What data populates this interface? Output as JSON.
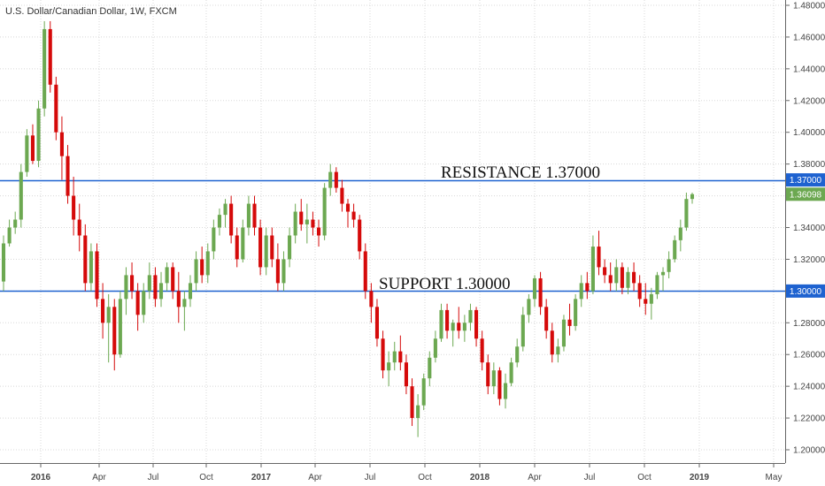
{
  "chart_data": {
    "type": "candlestick",
    "title": "U.S. Dollar/Canadian Dollar, 1W, FXCM",
    "ylim": [
      1.19,
      1.49
    ],
    "y_ticks": [
      "1.20000",
      "1.22000",
      "1.24000",
      "1.26000",
      "1.28000",
      "1.30000",
      "1.32000",
      "1.34000",
      "1.36000",
      "1.38000",
      "1.40000",
      "1.42000",
      "1.44000",
      "1.46000",
      "1.48000"
    ],
    "x_ticks": [
      {
        "label": "2016",
        "bold": true
      },
      {
        "label": "Apr",
        "bold": false
      },
      {
        "label": "Jul",
        "bold": false
      },
      {
        "label": "Oct",
        "bold": false
      },
      {
        "label": "2017",
        "bold": true
      },
      {
        "label": "Apr",
        "bold": false
      },
      {
        "label": "Jul",
        "bold": false
      },
      {
        "label": "Oct",
        "bold": false
      },
      {
        "label": "2018",
        "bold": true
      },
      {
        "label": "Apr",
        "bold": false
      },
      {
        "label": "Jul",
        "bold": false
      },
      {
        "label": "Oct",
        "bold": false
      },
      {
        "label": "2019",
        "bold": true
      },
      {
        "label": "May",
        "bold": false
      }
    ],
    "levels": [
      {
        "label": "RESISTANCE 1.37000",
        "value": 1.37,
        "badge": "1.37000"
      },
      {
        "label": "SUPPORT 1.30000",
        "value": 1.3,
        "badge": "1.30000"
      }
    ],
    "last_price": {
      "value": 1.36098,
      "badge": "1.36098"
    },
    "colors": {
      "up": "#6ca851",
      "down": "#d50a0a",
      "level": "#1e62d0",
      "last": "#6ca851",
      "grid": "#d8d8d8"
    },
    "candles": [
      [
        1.306,
        1.335,
        1.3,
        1.33
      ],
      [
        1.33,
        1.345,
        1.328,
        1.34
      ],
      [
        1.34,
        1.35,
        1.336,
        1.345
      ],
      [
        1.345,
        1.38,
        1.34,
        1.375
      ],
      [
        1.375,
        1.402,
        1.372,
        1.398
      ],
      [
        1.398,
        1.405,
        1.38,
        1.382
      ],
      [
        1.382,
        1.42,
        1.378,
        1.415
      ],
      [
        1.415,
        1.47,
        1.41,
        1.465
      ],
      [
        1.465,
        1.47,
        1.425,
        1.43
      ],
      [
        1.43,
        1.435,
        1.395,
        1.4
      ],
      [
        1.4,
        1.41,
        1.37,
        1.385
      ],
      [
        1.385,
        1.392,
        1.355,
        1.36
      ],
      [
        1.36,
        1.372,
        1.335,
        1.345
      ],
      [
        1.345,
        1.355,
        1.325,
        1.335
      ],
      [
        1.335,
        1.342,
        1.3,
        1.305
      ],
      [
        1.305,
        1.33,
        1.3,
        1.325
      ],
      [
        1.325,
        1.33,
        1.29,
        1.295
      ],
      [
        1.295,
        1.305,
        1.27,
        1.28
      ],
      [
        1.28,
        1.298,
        1.255,
        1.29
      ],
      [
        1.29,
        1.295,
        1.25,
        1.26
      ],
      [
        1.26,
        1.3,
        1.258,
        1.295
      ],
      [
        1.295,
        1.315,
        1.285,
        1.31
      ],
      [
        1.31,
        1.318,
        1.295,
        1.3
      ],
      [
        1.3,
        1.305,
        1.275,
        1.285
      ],
      [
        1.285,
        1.305,
        1.28,
        1.3
      ],
      [
        1.3,
        1.318,
        1.295,
        1.31
      ],
      [
        1.31,
        1.315,
        1.29,
        1.295
      ],
      [
        1.295,
        1.312,
        1.29,
        1.305
      ],
      [
        1.305,
        1.318,
        1.3,
        1.315
      ],
      [
        1.315,
        1.318,
        1.295,
        1.3
      ],
      [
        1.3,
        1.312,
        1.28,
        1.29
      ],
      [
        1.29,
        1.3,
        1.275,
        1.295
      ],
      [
        1.295,
        1.31,
        1.29,
        1.305
      ],
      [
        1.305,
        1.325,
        1.3,
        1.32
      ],
      [
        1.32,
        1.328,
        1.305,
        1.31
      ],
      [
        1.31,
        1.33,
        1.305,
        1.325
      ],
      [
        1.325,
        1.345,
        1.32,
        1.34
      ],
      [
        1.34,
        1.352,
        1.335,
        1.348
      ],
      [
        1.348,
        1.358,
        1.34,
        1.355
      ],
      [
        1.355,
        1.36,
        1.33,
        1.335
      ],
      [
        1.335,
        1.34,
        1.315,
        1.32
      ],
      [
        1.32,
        1.345,
        1.318,
        1.34
      ],
      [
        1.34,
        1.36,
        1.335,
        1.355
      ],
      [
        1.355,
        1.36,
        1.335,
        1.34
      ],
      [
        1.34,
        1.345,
        1.31,
        1.315
      ],
      [
        1.315,
        1.34,
        1.31,
        1.335
      ],
      [
        1.335,
        1.34,
        1.315,
        1.32
      ],
      [
        1.32,
        1.33,
        1.3,
        1.305
      ],
      [
        1.305,
        1.325,
        1.3,
        1.32
      ],
      [
        1.32,
        1.34,
        1.315,
        1.335
      ],
      [
        1.335,
        1.355,
        1.33,
        1.35
      ],
      [
        1.35,
        1.358,
        1.338,
        1.342
      ],
      [
        1.342,
        1.355,
        1.33,
        1.345
      ],
      [
        1.345,
        1.35,
        1.335,
        1.34
      ],
      [
        1.34,
        1.345,
        1.328,
        1.335
      ],
      [
        1.335,
        1.368,
        1.332,
        1.365
      ],
      [
        1.365,
        1.38,
        1.36,
        1.375
      ],
      [
        1.375,
        1.378,
        1.362,
        1.365
      ],
      [
        1.365,
        1.37,
        1.35,
        1.355
      ],
      [
        1.355,
        1.358,
        1.34,
        1.35
      ],
      [
        1.35,
        1.355,
        1.34,
        1.345
      ],
      [
        1.345,
        1.348,
        1.32,
        1.325
      ],
      [
        1.325,
        1.33,
        1.295,
        1.3
      ],
      [
        1.3,
        1.305,
        1.28,
        1.29
      ],
      [
        1.29,
        1.295,
        1.265,
        1.27
      ],
      [
        1.27,
        1.275,
        1.245,
        1.25
      ],
      [
        1.25,
        1.262,
        1.24,
        1.255
      ],
      [
        1.255,
        1.268,
        1.25,
        1.262
      ],
      [
        1.262,
        1.272,
        1.25,
        1.255
      ],
      [
        1.255,
        1.26,
        1.235,
        1.24
      ],
      [
        1.24,
        1.245,
        1.215,
        1.22
      ],
      [
        1.22,
        1.235,
        1.208,
        1.228
      ],
      [
        1.228,
        1.248,
        1.225,
        1.245
      ],
      [
        1.245,
        1.262,
        1.24,
        1.258
      ],
      [
        1.258,
        1.275,
        1.255,
        1.27
      ],
      [
        1.27,
        1.292,
        1.268,
        1.288
      ],
      [
        1.288,
        1.292,
        1.27,
        1.275
      ],
      [
        1.275,
        1.282,
        1.265,
        1.28
      ],
      [
        1.28,
        1.29,
        1.27,
        1.275
      ],
      [
        1.275,
        1.285,
        1.268,
        1.28
      ],
      [
        1.28,
        1.292,
        1.275,
        1.288
      ],
      [
        1.288,
        1.29,
        1.265,
        1.27
      ],
      [
        1.27,
        1.275,
        1.25,
        1.255
      ],
      [
        1.255,
        1.26,
        1.235,
        1.24
      ],
      [
        1.24,
        1.255,
        1.235,
        1.25
      ],
      [
        1.25,
        1.252,
        1.228,
        1.232
      ],
      [
        1.232,
        1.248,
        1.226,
        1.242
      ],
      [
        1.242,
        1.258,
        1.24,
        1.255
      ],
      [
        1.255,
        1.27,
        1.252,
        1.265
      ],
      [
        1.265,
        1.29,
        1.262,
        1.285
      ],
      [
        1.285,
        1.298,
        1.28,
        1.295
      ],
      [
        1.295,
        1.31,
        1.29,
        1.308
      ],
      [
        1.308,
        1.312,
        1.285,
        1.29
      ],
      [
        1.29,
        1.295,
        1.27,
        1.275
      ],
      [
        1.275,
        1.28,
        1.255,
        1.26
      ],
      [
        1.26,
        1.27,
        1.255,
        1.265
      ],
      [
        1.265,
        1.285,
        1.262,
        1.282
      ],
      [
        1.282,
        1.292,
        1.272,
        1.278
      ],
      [
        1.278,
        1.298,
        1.275,
        1.295
      ],
      [
        1.295,
        1.31,
        1.29,
        1.305
      ],
      [
        1.305,
        1.312,
        1.295,
        1.3
      ],
      [
        1.3,
        1.335,
        1.298,
        1.328
      ],
      [
        1.328,
        1.338,
        1.31,
        1.315
      ],
      [
        1.315,
        1.32,
        1.305,
        1.31
      ],
      [
        1.31,
        1.318,
        1.3,
        1.305
      ],
      [
        1.305,
        1.32,
        1.3,
        1.315
      ],
      [
        1.315,
        1.318,
        1.298,
        1.302
      ],
      [
        1.302,
        1.315,
        1.298,
        1.312
      ],
      [
        1.312,
        1.318,
        1.3,
        1.305
      ],
      [
        1.305,
        1.31,
        1.29,
        1.295
      ],
      [
        1.295,
        1.305,
        1.285,
        1.292
      ],
      [
        1.292,
        1.302,
        1.282,
        1.298
      ],
      [
        1.298,
        1.312,
        1.295,
        1.31
      ],
      [
        1.31,
        1.315,
        1.3,
        1.312
      ],
      [
        1.312,
        1.325,
        1.308,
        1.32
      ],
      [
        1.32,
        1.335,
        1.318,
        1.332
      ],
      [
        1.332,
        1.345,
        1.325,
        1.34
      ],
      [
        1.34,
        1.362,
        1.338,
        1.358
      ],
      [
        1.358,
        1.362,
        1.355,
        1.361
      ]
    ]
  }
}
